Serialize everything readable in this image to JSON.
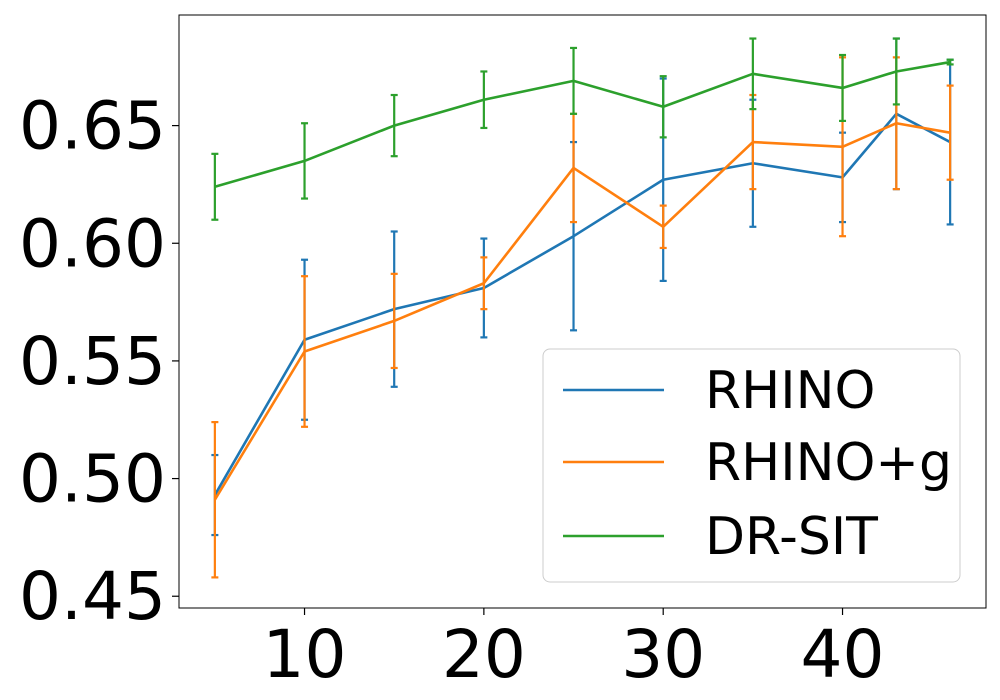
{
  "chart_data": {
    "type": "line",
    "title": "",
    "xlabel": "",
    "ylabel": "",
    "xlim": [
      3,
      48
    ],
    "ylim": [
      0.445,
      0.697
    ],
    "x_ticks": [
      10,
      20,
      30,
      40
    ],
    "y_ticks": [
      0.45,
      0.5,
      0.55,
      0.6,
      0.65
    ],
    "x_tick_labels": [
      "10",
      "20",
      "30",
      "40"
    ],
    "y_tick_labels": [
      "0.45",
      "0.50",
      "0.55",
      "0.60",
      "0.65"
    ],
    "grid": false,
    "legend_position": "lower-right",
    "x": [
      5,
      10,
      15,
      20,
      25,
      30,
      35,
      40,
      43,
      46
    ],
    "series": [
      {
        "name": "RHINO",
        "color": "#1f77b4",
        "values": [
          0.493,
          0.559,
          0.572,
          0.581,
          0.603,
          0.627,
          0.634,
          0.628,
          0.655,
          0.643
        ],
        "errors": [
          0.017,
          0.034,
          0.033,
          0.021,
          0.04,
          0.043,
          0.027,
          0.019,
          0.032,
          0.035
        ]
      },
      {
        "name": "RHINO+g",
        "color": "#ff7f0e",
        "values": [
          0.491,
          0.554,
          0.567,
          0.583,
          0.632,
          0.607,
          0.643,
          0.641,
          0.651,
          0.647
        ],
        "errors": [
          0.033,
          0.032,
          0.02,
          0.011,
          0.023,
          0.009,
          0.02,
          0.038,
          0.028,
          0.02
        ]
      },
      {
        "name": "DR-SIT",
        "color": "#2ca02c",
        "values": [
          0.624,
          0.635,
          0.65,
          0.661,
          0.669,
          0.658,
          0.672,
          0.666,
          0.673,
          0.677
        ],
        "errors": [
          0.014,
          0.016,
          0.013,
          0.012,
          0.014,
          0.013,
          0.015,
          0.014,
          0.014,
          0.001
        ]
      }
    ]
  }
}
